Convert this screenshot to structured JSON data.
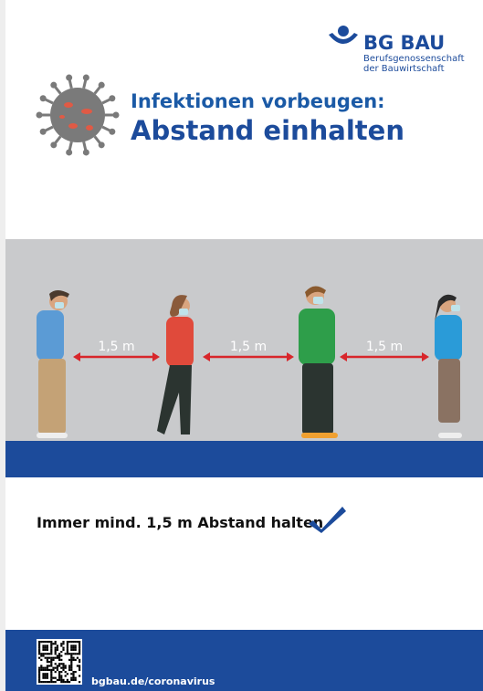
{
  "logo": {
    "name": "BG BAU",
    "subtitle_lines": [
      "Berufsgenossenschaft",
      "der Bauwirtschaft"
    ]
  },
  "title": {
    "line1": "Infektionen vorbeugen:",
    "line2": "Abstand einhalten"
  },
  "distances": [
    "1,5 m",
    "1,5 m",
    "1,5 m"
  ],
  "message": "Immer mind. 1,5 m Abstand halten",
  "footer": {
    "url": "bgbau.de/coronavirus"
  }
}
